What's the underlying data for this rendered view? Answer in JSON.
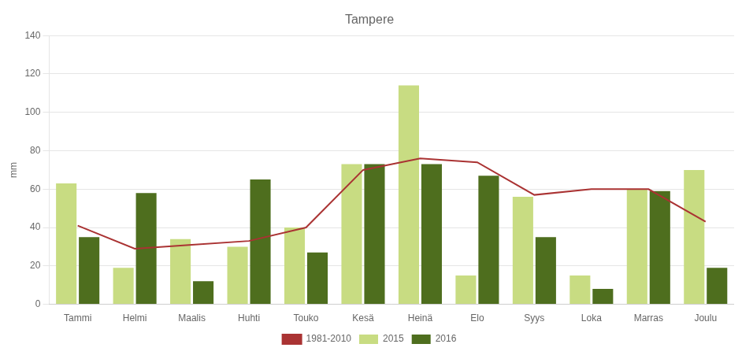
{
  "chart_data": {
    "type": "bar",
    "title": "Tampere",
    "ylabel": "mm",
    "categories": [
      "Tammi",
      "Helmi",
      "Maalis",
      "Huhti",
      "Touko",
      "Kesä",
      "Heinä",
      "Elo",
      "Syys",
      "Loka",
      "Marras",
      "Joulu"
    ],
    "series": [
      {
        "name": "2015",
        "type": "bar",
        "color": "#c8dc82",
        "values": [
          63,
          19,
          34,
          30,
          40,
          73,
          114,
          15,
          56,
          15,
          60,
          70
        ]
      },
      {
        "name": "2016",
        "type": "bar",
        "color": "#4e6e1e",
        "values": [
          35,
          58,
          12,
          65,
          27,
          73,
          73,
          67,
          35,
          8,
          59,
          19
        ]
      },
      {
        "name": "1981-2010",
        "type": "line",
        "color": "#aa3333",
        "marker": "none",
        "values": [
          41,
          29,
          31,
          33,
          40,
          70,
          76,
          74,
          57,
          60,
          60,
          43
        ]
      }
    ],
    "ylim": [
      0,
      140
    ],
    "yticks": [
      0,
      20,
      40,
      60,
      80,
      100,
      120,
      140
    ],
    "grid": true,
    "legend": "bottom"
  }
}
